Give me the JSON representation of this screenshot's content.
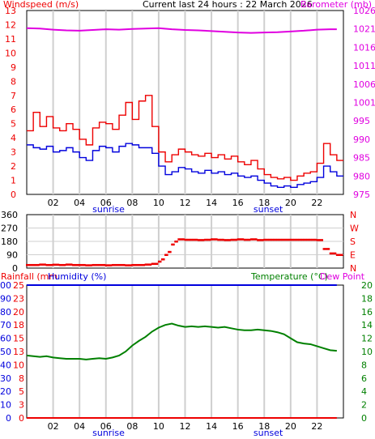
{
  "header": {
    "left_label": "Windspeed (m/s)",
    "center_title": "Current last 24 hours : 22 March 2026",
    "right_label": "Barometer (mb)"
  },
  "colors": {
    "red": "#ee0000",
    "blue": "#0000dd",
    "magenta": "#e000e0",
    "green": "#008000",
    "grid": "#cfcfcf",
    "frame": "#000000"
  },
  "x_axis": {
    "range": [
      0,
      24
    ],
    "tick_hours": [
      2,
      4,
      6,
      8,
      10,
      12,
      14,
      16,
      18,
      20,
      22
    ],
    "tick_labels": [
      "02",
      "04",
      "06",
      "08",
      "10",
      "12",
      "14",
      "16",
      "18",
      "20",
      "22"
    ],
    "sunrise_label": "sunrise",
    "sunrise_hour": 6.2,
    "sunset_label": "sunset",
    "sunset_hour": 18.3
  },
  "wind_panel": {
    "left_ticks": [
      "0",
      "1",
      "2",
      "3",
      "4",
      "5",
      "6",
      "7",
      "8",
      "9",
      "10",
      "11",
      "12",
      "13"
    ],
    "right_ticks": [
      "975",
      "980",
      "985",
      "990",
      "995",
      "1001",
      "1006",
      "1011",
      "1016",
      "1021",
      "1026"
    ]
  },
  "direction_panel": {
    "left_ticks": [
      "0",
      "90",
      "180",
      "270",
      "360"
    ],
    "right_ticks": [
      "N",
      "E",
      "S",
      "W",
      "N"
    ]
  },
  "temp_panel": {
    "rainfall_label": "Rainfall (mm",
    "humidity_label": "Humidity (%)",
    "temperature_label": "Temperature (°C)",
    "dewpoint_label": "Dew Point",
    "humidity_ticks": [
      "0",
      "10",
      "20",
      "30",
      "40",
      "50",
      "60",
      "70",
      "80",
      "90",
      "100"
    ],
    "rain_ticks": [
      "0",
      "3",
      "5",
      "8",
      "10",
      "13",
      "15",
      "18",
      "20",
      "23",
      "25"
    ],
    "temp_ticks": [
      "0",
      "2",
      "4",
      "6",
      "8",
      "10",
      "12",
      "14",
      "16",
      "18",
      "20"
    ]
  },
  "chart_data": [
    {
      "type": "line",
      "title": "Current last 24 hours : 22 March 2026",
      "ylabel": "Windspeed (m/s)",
      "y2label": "Barometer (mb)",
      "xlim": [
        0,
        24
      ],
      "ylim": [
        0,
        13
      ],
      "y2lim": [
        975,
        1026
      ],
      "grid": true,
      "series": [
        {
          "name": "Barometer (mb)",
          "axis": "right",
          "color": "#e000e0",
          "x": [
            0,
            1,
            2,
            3,
            4,
            5,
            6,
            7,
            8,
            9,
            10,
            11,
            12,
            13,
            14,
            15,
            16,
            17,
            18,
            19,
            20,
            21,
            22,
            23,
            23.5
          ],
          "y": [
            1021.1,
            1021.0,
            1020.7,
            1020.5,
            1020.4,
            1020.6,
            1020.8,
            1020.7,
            1020.9,
            1021.0,
            1021.1,
            1020.8,
            1020.6,
            1020.5,
            1020.3,
            1020.1,
            1019.9,
            1019.8,
            1019.9,
            1020.0,
            1020.2,
            1020.4,
            1020.7,
            1020.8,
            1020.8
          ]
        },
        {
          "name": "Wind gust (m/s)",
          "color": "#ee0000",
          "x": [
            0,
            0.5,
            1,
            1.5,
            2,
            2.5,
            3,
            3.5,
            4,
            4.5,
            5,
            5.5,
            6,
            6.5,
            7,
            7.5,
            8,
            8.5,
            9,
            9.5,
            10,
            10.5,
            11,
            11.5,
            12,
            12.5,
            13,
            13.5,
            14,
            14.5,
            15,
            15.5,
            16,
            16.5,
            17,
            17.5,
            18,
            18.5,
            19,
            19.5,
            20,
            20.5,
            21,
            21.5,
            22,
            22.5,
            23,
            23.5
          ],
          "y": [
            4.5,
            5.8,
            4.8,
            5.5,
            4.7,
            4.5,
            5.0,
            4.6,
            3.9,
            3.5,
            4.7,
            5.1,
            5.0,
            4.6,
            5.6,
            6.5,
            5.3,
            6.6,
            7.0,
            4.8,
            3.0,
            2.3,
            2.8,
            3.2,
            3.0,
            2.8,
            2.7,
            2.9,
            2.6,
            2.8,
            2.5,
            2.7,
            2.3,
            2.1,
            2.4,
            1.8,
            1.4,
            1.2,
            1.1,
            1.2,
            1.0,
            1.3,
            1.5,
            1.6,
            2.2,
            3.6,
            2.8,
            2.4
          ]
        },
        {
          "name": "Wind speed (m/s)",
          "color": "#0000dd",
          "x": [
            0,
            0.5,
            1,
            1.5,
            2,
            2.5,
            3,
            3.5,
            4,
            4.5,
            5,
            5.5,
            6,
            6.5,
            7,
            7.5,
            8,
            8.5,
            9,
            9.5,
            10,
            10.5,
            11,
            11.5,
            12,
            12.5,
            13,
            13.5,
            14,
            14.5,
            15,
            15.5,
            16,
            16.5,
            17,
            17.5,
            18,
            18.5,
            19,
            19.5,
            20,
            20.5,
            21,
            21.5,
            22,
            22.5,
            23,
            23.5
          ],
          "y": [
            3.5,
            3.3,
            3.2,
            3.4,
            3.0,
            3.1,
            3.3,
            3.0,
            2.6,
            2.4,
            3.1,
            3.4,
            3.3,
            3.0,
            3.4,
            3.6,
            3.5,
            3.3,
            3.3,
            2.9,
            2.0,
            1.4,
            1.6,
            1.9,
            1.8,
            1.6,
            1.5,
            1.7,
            1.5,
            1.6,
            1.4,
            1.5,
            1.3,
            1.2,
            1.3,
            1.0,
            0.8,
            0.6,
            0.5,
            0.6,
            0.5,
            0.7,
            0.8,
            0.9,
            1.2,
            2.0,
            1.6,
            1.3
          ]
        }
      ]
    },
    {
      "type": "scatter",
      "ylabel": "Wind direction",
      "xlim": [
        0,
        24
      ],
      "ylim": [
        0,
        360
      ],
      "grid": true,
      "series": [
        {
          "name": "Wind direction",
          "color": "#ee0000",
          "x": [
            0,
            0.5,
            1,
            1.5,
            2,
            2.5,
            3,
            3.5,
            4,
            4.5,
            5,
            5.5,
            6,
            6.5,
            7,
            7.5,
            8,
            8.5,
            9,
            9.5,
            10,
            10.25,
            10.5,
            10.75,
            11,
            11.25,
            11.5,
            12,
            12.5,
            13,
            13.5,
            14,
            14.5,
            15,
            15.5,
            16,
            16.5,
            17,
            17.5,
            18,
            18.5,
            19,
            19.5,
            20,
            20.5,
            21,
            21.5,
            22,
            22.5,
            23,
            23.5
          ],
          "y": [
            22,
            22,
            25,
            22,
            24,
            22,
            25,
            22,
            22,
            20,
            22,
            22,
            20,
            22,
            22,
            20,
            22,
            22,
            25,
            30,
            45,
            60,
            90,
            110,
            160,
            180,
            195,
            192,
            192,
            190,
            192,
            195,
            192,
            190,
            192,
            195,
            192,
            195,
            190,
            192,
            192,
            192,
            192,
            192,
            192,
            192,
            192,
            190,
            130,
            100,
            90
          ]
        }
      ]
    },
    {
      "type": "line",
      "ylabel": "Humidity (%)",
      "y2label": "Temperature (°C)",
      "xlim": [
        0,
        24
      ],
      "ylim": [
        0,
        100
      ],
      "y2lim": [
        0,
        20
      ],
      "grid": true,
      "series": [
        {
          "name": "Humidity (%)",
          "color": "#0000dd",
          "x": [
            0,
            23.5
          ],
          "y": [
            100,
            100
          ]
        },
        {
          "name": "Rainfall (mm",
          "color": "#ee0000",
          "x": [
            0,
            23.5
          ],
          "y": [
            0,
            0
          ]
        },
        {
          "name": "Temperature (°C)",
          "color": "#008000",
          "x": [
            0,
            0.5,
            1,
            1.5,
            2,
            2.5,
            3,
            3.5,
            4,
            4.5,
            5,
            5.5,
            6,
            6.5,
            7,
            7.5,
            8,
            8.5,
            9,
            9.5,
            10,
            10.5,
            11,
            11.5,
            12,
            12.5,
            13,
            13.5,
            14,
            14.5,
            15,
            15.5,
            16,
            16.5,
            17,
            17.5,
            18,
            18.5,
            19,
            19.5,
            20,
            20.5,
            21,
            21.5,
            22,
            22.5,
            23,
            23.5
          ],
          "y": [
            9.4,
            9.3,
            9.2,
            9.3,
            9.1,
            9.0,
            8.9,
            8.9,
            8.9,
            8.8,
            8.9,
            9.0,
            8.9,
            9.1,
            9.4,
            10.0,
            10.9,
            11.6,
            12.2,
            13.0,
            13.6,
            14.0,
            14.2,
            13.9,
            13.7,
            13.8,
            13.7,
            13.8,
            13.7,
            13.6,
            13.7,
            13.5,
            13.3,
            13.2,
            13.2,
            13.3,
            13.2,
            13.1,
            12.9,
            12.6,
            12.0,
            11.4,
            11.2,
            11.1,
            10.8,
            10.5,
            10.2,
            10.1
          ]
        }
      ]
    }
  ]
}
